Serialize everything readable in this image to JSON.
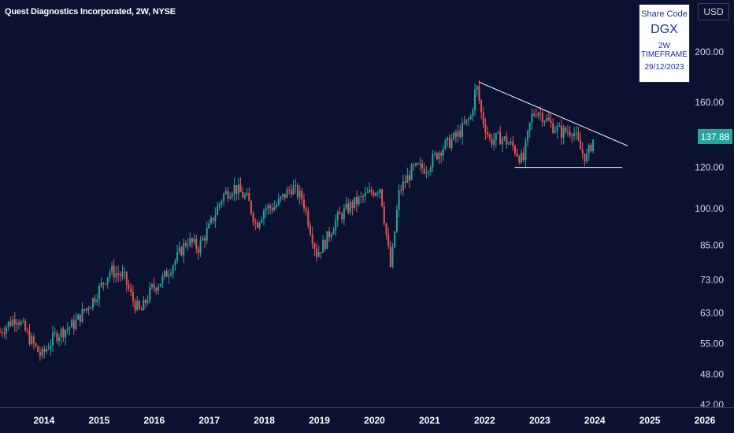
{
  "header": {
    "title": "Quest Diagnostics Incorporated, 2W, NYSE",
    "currency": "USD"
  },
  "info_box": {
    "line1": "Share Code",
    "line2": "DGX",
    "line3": "2W TIMEFRAME",
    "line4": "29/12/2023"
  },
  "last_price": "137.88",
  "colors": {
    "background": "#0b1230",
    "up": "#26a69a",
    "down": "#ef5350",
    "price_tag": "#26a69a"
  },
  "chart_data": {
    "type": "candlestick",
    "timeframe": "2W",
    "y_scale": "log",
    "ylim": [
      42,
      250
    ],
    "y_ticks": [
      "200.00",
      "160.00",
      "137.88",
      "120.00",
      "100.00",
      "85.00",
      "73.00",
      "63.00",
      "55.00",
      "48.00",
      "42.00"
    ],
    "x_ticks": [
      "2014",
      "2015",
      "2016",
      "2017",
      "2018",
      "2019",
      "2020",
      "2021",
      "2022",
      "2023",
      "2024",
      "2025",
      "2026"
    ],
    "xlim": [
      2013.2,
      2026.5
    ],
    "anchors": [
      [
        2013.2,
        58
      ],
      [
        2013.5,
        62
      ],
      [
        2013.75,
        56
      ],
      [
        2013.95,
        52
      ],
      [
        2014.2,
        57
      ],
      [
        2014.55,
        60
      ],
      [
        2014.9,
        67
      ],
      [
        2015.2,
        76
      ],
      [
        2015.45,
        74
      ],
      [
        2015.6,
        67
      ],
      [
        2015.75,
        63
      ],
      [
        2015.95,
        70
      ],
      [
        2016.15,
        73
      ],
      [
        2016.4,
        80
      ],
      [
        2016.6,
        87
      ],
      [
        2016.8,
        84
      ],
      [
        2017.0,
        92
      ],
      [
        2017.25,
        106
      ],
      [
        2017.45,
        110
      ],
      [
        2017.7,
        104
      ],
      [
        2017.85,
        93
      ],
      [
        2018.0,
        100
      ],
      [
        2018.2,
        101
      ],
      [
        2018.5,
        110
      ],
      [
        2018.7,
        104
      ],
      [
        2018.85,
        90
      ],
      [
        2018.95,
        82
      ],
      [
        2019.1,
        86
      ],
      [
        2019.3,
        95
      ],
      [
        2019.55,
        101
      ],
      [
        2019.85,
        106
      ],
      [
        2020.1,
        110
      ],
      [
        2020.22,
        88
      ],
      [
        2020.3,
        76
      ],
      [
        2020.45,
        108
      ],
      [
        2020.7,
        119
      ],
      [
        2020.95,
        120
      ],
      [
        2021.2,
        130
      ],
      [
        2021.5,
        138
      ],
      [
        2021.75,
        150
      ],
      [
        2021.85,
        173
      ],
      [
        2021.95,
        150
      ],
      [
        2022.1,
        135
      ],
      [
        2022.3,
        137
      ],
      [
        2022.5,
        132
      ],
      [
        2022.7,
        123
      ],
      [
        2022.85,
        150
      ],
      [
        2022.95,
        155
      ],
      [
        2023.2,
        145
      ],
      [
        2023.4,
        140
      ],
      [
        2023.6,
        142
      ],
      [
        2023.75,
        129
      ],
      [
        2023.85,
        125
      ],
      [
        2023.95,
        134
      ],
      [
        2024.0,
        137.88
      ]
    ],
    "trendlines": [
      {
        "name": "resistance",
        "from": [
          2021.9,
          175
        ],
        "to": [
          2024.6,
          132
        ]
      },
      {
        "name": "support",
        "from": [
          2022.55,
          120
        ],
        "to": [
          2024.5,
          120
        ]
      }
    ]
  }
}
